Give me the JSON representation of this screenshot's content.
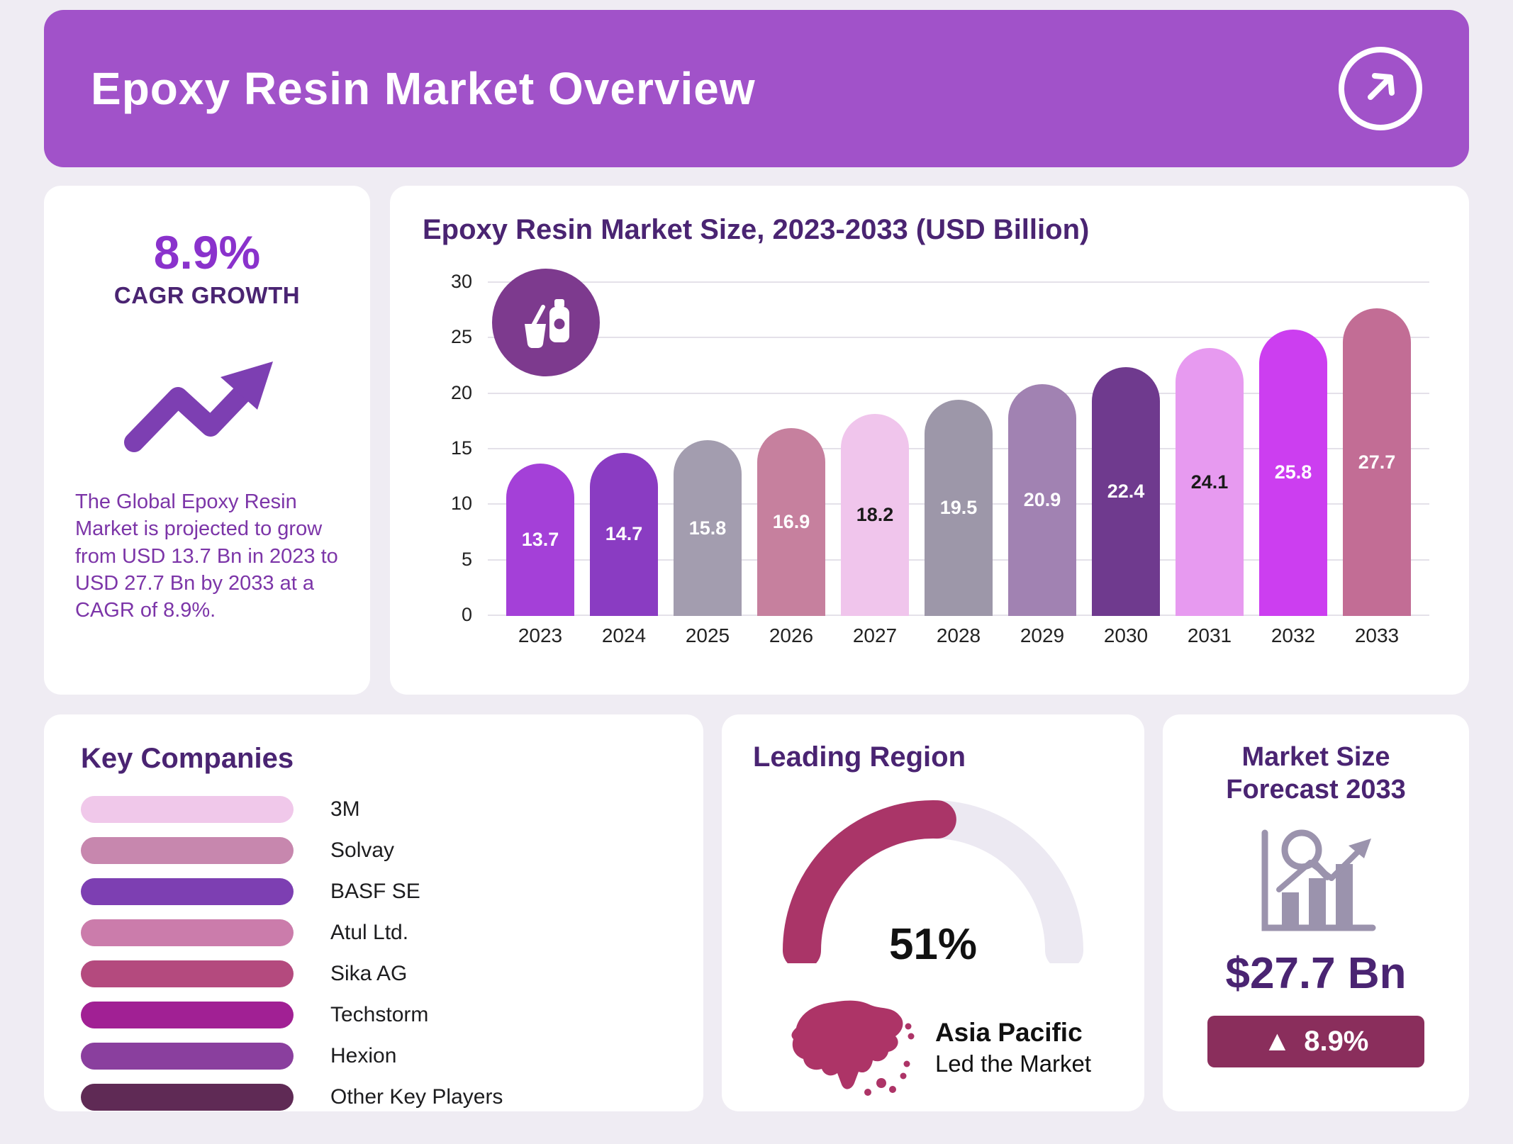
{
  "header": {
    "title": "Epoxy Resin Market Overview"
  },
  "stats": {
    "cagr_value": "8.9%",
    "cagr_label": "CAGR GROWTH",
    "description": "The Global Epoxy Resin Market is projected to grow from USD 13.7 Bn in 2023 to USD 27.7 Bn by 2033 at a CAGR of 8.9%."
  },
  "chart_data": {
    "type": "bar",
    "title": "Epoxy Resin Market Size, 2023-2033 (USD Billion)",
    "categories": [
      "2023",
      "2024",
      "2025",
      "2026",
      "2027",
      "2028",
      "2029",
      "2030",
      "2031",
      "2032",
      "2033"
    ],
    "values": [
      13.7,
      14.7,
      15.8,
      16.9,
      18.2,
      19.5,
      20.9,
      22.4,
      24.1,
      25.8,
      27.7
    ],
    "xlabel": "",
    "ylabel": "",
    "ylim": [
      0,
      30
    ],
    "yticks": [
      0,
      5,
      10,
      15,
      20,
      25,
      30
    ],
    "grid": true,
    "legend": false,
    "bar_colors": [
      "#a440d8",
      "#8a3cc2",
      "#a39daf",
      "#c6809e",
      "#f0c5ec",
      "#9d97a9",
      "#a182b2",
      "#6f3a8e",
      "#e79af0",
      "#cc3ef0",
      "#c26d95"
    ],
    "label_colors": [
      "#ffffff",
      "#ffffff",
      "#ffffff",
      "#ffffff",
      "#1a1a1a",
      "#ffffff",
      "#ffffff",
      "#ffffff",
      "#1a1a1a",
      "#ffffff",
      "#ffffff"
    ]
  },
  "key_companies": {
    "title": "Key Companies",
    "items": [
      {
        "label": "3M",
        "color": "#f0c8ea"
      },
      {
        "label": "Solvay",
        "color": "#c787ae"
      },
      {
        "label": "BASF SE",
        "color": "#7d3fb2"
      },
      {
        "label": "Atul Ltd.",
        "color": "#cb7cab"
      },
      {
        "label": "Sika AG",
        "color": "#b44a7e"
      },
      {
        "label": "Techstorm",
        "color": "#a12094"
      },
      {
        "label": "Hexion",
        "color": "#8a3f9e"
      },
      {
        "label": "Other Key Players",
        "color": "#5f2a55"
      }
    ]
  },
  "leading_region": {
    "title": "Leading Region",
    "percent": "51%",
    "percent_value": 51,
    "gauge_color": "#aa3568",
    "gauge_track_color": "#ece9f2",
    "region": "Asia Pacific",
    "subtitle": "Led the Market"
  },
  "forecast": {
    "title": "Market Size Forecast 2033",
    "value": "$27.7 Bn",
    "up_symbol": "▲",
    "growth": "8.9%",
    "badge_color": "#8a2e5c"
  },
  "palette": {
    "page_bg": "#efecf3",
    "header_bg": "#a152c9",
    "heading_text": "#4a2472",
    "body_text": "#7c35a8",
    "accent_purple": "#8a32cc",
    "chart_icon_bg": "#7d3a8e"
  }
}
